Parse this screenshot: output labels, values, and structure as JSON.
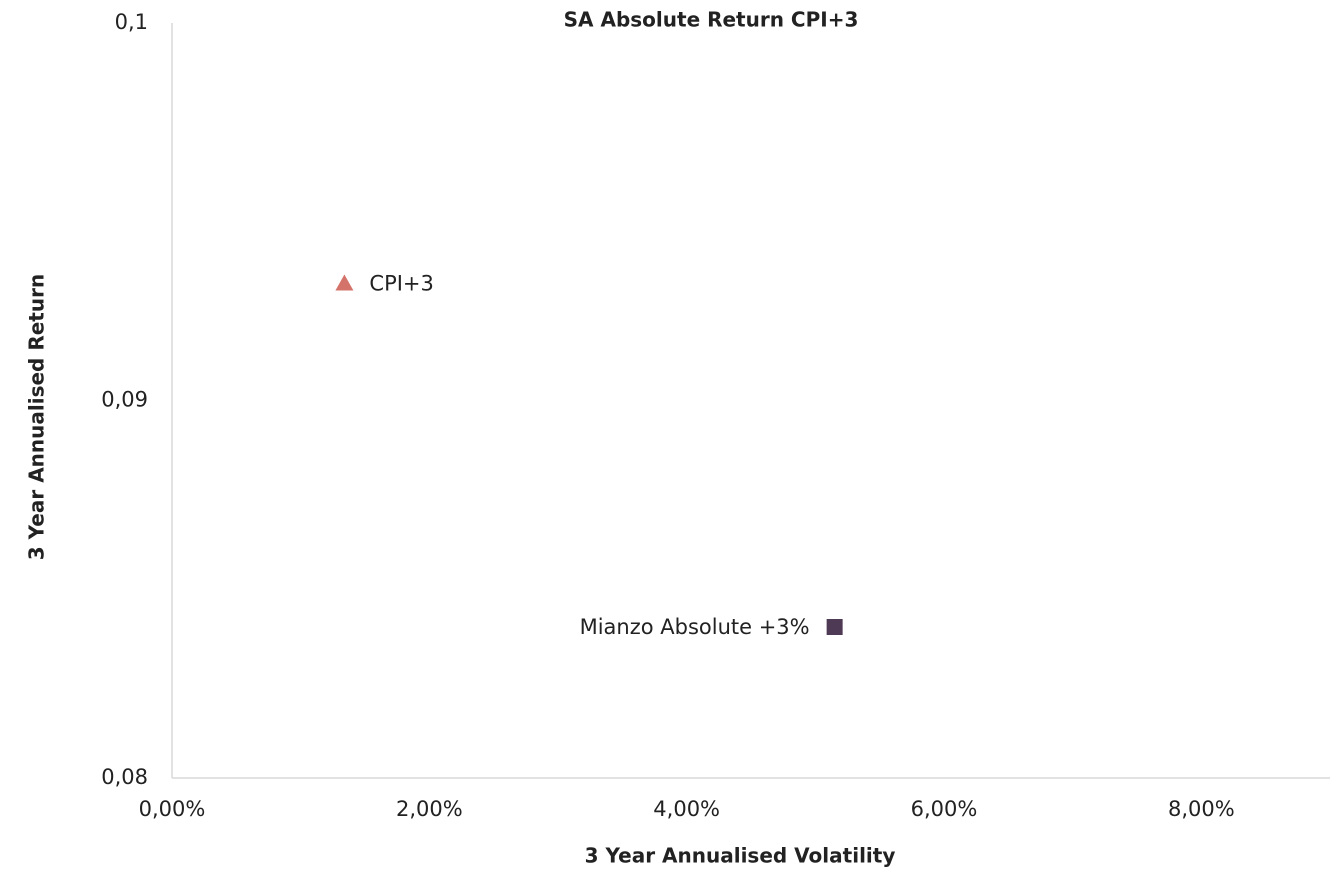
{
  "chart_data": {
    "type": "scatter",
    "title": "SA Absolute Return CPI+3",
    "xlabel": "3 Year Annualised Volatility",
    "ylabel": "3 Year Annualised Return",
    "xlim": [
      0,
      0.09
    ],
    "ylim": [
      0.08,
      0.1
    ],
    "xticks": [
      {
        "value": 0,
        "label": "0,00%"
      },
      {
        "value": 0.02,
        "label": "2,00%"
      },
      {
        "value": 0.04,
        "label": "4,00%"
      },
      {
        "value": 0.06,
        "label": "6,00%"
      },
      {
        "value": 0.08,
        "label": "8,00%"
      }
    ],
    "yticks": [
      {
        "value": 0.08,
        "label": "0,08"
      },
      {
        "value": 0.09,
        "label": "0,09"
      },
      {
        "value": 0.1,
        "label": "0,1"
      }
    ],
    "grid": false,
    "series": [
      {
        "name": "CPI+3",
        "color": "#d4736a",
        "marker": "triangle",
        "label_position": "right",
        "x": [
          0.0134
        ],
        "values": [
          0.0931
        ]
      },
      {
        "name": "Mianzo Absolute +3%",
        "color": "#4f3a55",
        "marker": "square",
        "label_position": "left",
        "x": [
          0.0515
        ],
        "values": [
          0.084
        ]
      }
    ]
  }
}
